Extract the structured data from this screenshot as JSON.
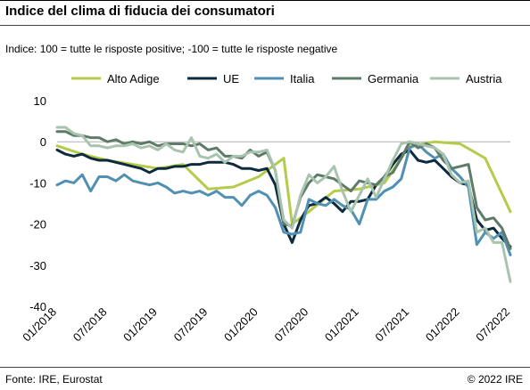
{
  "header": {
    "title": "Indice del clima di fiducia dei consumatori",
    "subtitle": "Indice: 100 = tutte le risposte positive; -100 =  tutte le risposte negative"
  },
  "footer": {
    "source": "Fonte: IRE, Eurostat",
    "copyright": "© 2022 IRE"
  },
  "chart_data": {
    "type": "line",
    "xlim": [
      "2018-01",
      "2022-07"
    ],
    "ylim": [
      -40,
      10
    ],
    "yticks": [
      10,
      0,
      -10,
      -20,
      -30,
      -40
    ],
    "xticks": [
      "01/2018",
      "07/2018",
      "01/2019",
      "07/2019",
      "01/2020",
      "07/2020",
      "01/2021",
      "07/2021",
      "01/2022",
      "07/2022"
    ],
    "legend_position": "top",
    "grid": false,
    "series": [
      {
        "name": "Alto Adige",
        "color": "#b5cc4a",
        "points": [
          [
            "2018-01",
            -1
          ],
          [
            "2018-04",
            -3
          ],
          [
            "2018-07",
            -4.5
          ],
          [
            "2018-10",
            -5.5
          ],
          [
            "2019-01",
            -6.5
          ],
          [
            "2019-04",
            -5.5
          ],
          [
            "2019-07",
            -11.5
          ],
          [
            "2019-10",
            -11
          ],
          [
            "2020-01",
            -8.5
          ],
          [
            "2020-04",
            -4
          ],
          [
            "2020-05",
            -20
          ],
          [
            "2020-07",
            -17
          ],
          [
            "2020-10",
            -12
          ],
          [
            "2021-01",
            -11.5
          ],
          [
            "2021-04",
            -10
          ],
          [
            "2021-07",
            -1
          ],
          [
            "2021-10",
            0
          ],
          [
            "2022-01",
            -0.5
          ],
          [
            "2022-04",
            -4
          ],
          [
            "2022-07",
            -17
          ]
        ]
      },
      {
        "name": "UE",
        "color": "#0d2a3f",
        "points": [
          [
            "2018-01",
            -2
          ],
          [
            "2018-02",
            -3
          ],
          [
            "2018-03",
            -3.5
          ],
          [
            "2018-04",
            -3
          ],
          [
            "2018-05",
            -4
          ],
          [
            "2018-06",
            -4.5
          ],
          [
            "2018-07",
            -4.5
          ],
          [
            "2018-08",
            -5
          ],
          [
            "2018-09",
            -5.5
          ],
          [
            "2018-10",
            -6
          ],
          [
            "2018-11",
            -6.5
          ],
          [
            "2018-12",
            -7.5
          ],
          [
            "2019-01",
            -6.5
          ],
          [
            "2019-02",
            -6.5
          ],
          [
            "2019-03",
            -6
          ],
          [
            "2019-04",
            -6
          ],
          [
            "2019-05",
            -5.5
          ],
          [
            "2019-06",
            -5.5
          ],
          [
            "2019-07",
            -5
          ],
          [
            "2019-08",
            -5
          ],
          [
            "2019-09",
            -5
          ],
          [
            "2019-10",
            -5.5
          ],
          [
            "2019-11",
            -6.5
          ],
          [
            "2019-12",
            -6.5
          ],
          [
            "2020-01",
            -7
          ],
          [
            "2020-02",
            -6.5
          ],
          [
            "2020-03",
            -10.5
          ],
          [
            "2020-04",
            -20
          ],
          [
            "2020-05",
            -24.5
          ],
          [
            "2020-06",
            -19
          ],
          [
            "2020-07",
            -15.5
          ],
          [
            "2020-08",
            -15
          ],
          [
            "2020-09",
            -13.5
          ],
          [
            "2020-10",
            -15
          ],
          [
            "2020-11",
            -17
          ],
          [
            "2020-12",
            -14.5
          ],
          [
            "2021-01",
            -14.5
          ],
          [
            "2021-02",
            -14
          ],
          [
            "2021-03",
            -10.5
          ],
          [
            "2021-04",
            -8.5
          ],
          [
            "2021-05",
            -5.5
          ],
          [
            "2021-06",
            -3
          ],
          [
            "2021-07",
            -2
          ],
          [
            "2021-08",
            -4.5
          ],
          [
            "2021-09",
            -5
          ],
          [
            "2021-10",
            -4.5
          ],
          [
            "2021-11",
            -6.5
          ],
          [
            "2021-12",
            -8.5
          ],
          [
            "2022-01",
            -10
          ],
          [
            "2022-02",
            -10.5
          ],
          [
            "2022-03",
            -19
          ],
          [
            "2022-04",
            -21.5
          ],
          [
            "2022-05",
            -21
          ],
          [
            "2022-06",
            -23.5
          ],
          [
            "2022-07",
            -25.5
          ]
        ]
      },
      {
        "name": "Italia",
        "color": "#4f90b3",
        "points": [
          [
            "2018-01",
            -10.5
          ],
          [
            "2018-02",
            -9.5
          ],
          [
            "2018-03",
            -10
          ],
          [
            "2018-04",
            -8
          ],
          [
            "2018-05",
            -12
          ],
          [
            "2018-06",
            -8.5
          ],
          [
            "2018-07",
            -8.5
          ],
          [
            "2018-08",
            -9.5
          ],
          [
            "2018-09",
            -8
          ],
          [
            "2018-10",
            -9.5
          ],
          [
            "2018-11",
            -10
          ],
          [
            "2018-12",
            -10.5
          ],
          [
            "2019-01",
            -10
          ],
          [
            "2019-02",
            -11
          ],
          [
            "2019-03",
            -12.5
          ],
          [
            "2019-04",
            -12
          ],
          [
            "2019-05",
            -12.5
          ],
          [
            "2019-06",
            -12
          ],
          [
            "2019-07",
            -13
          ],
          [
            "2019-08",
            -12
          ],
          [
            "2019-09",
            -13.5
          ],
          [
            "2019-10",
            -13.5
          ],
          [
            "2019-11",
            -15.5
          ],
          [
            "2019-12",
            -13
          ],
          [
            "2020-01",
            -12
          ],
          [
            "2020-02",
            -13
          ],
          [
            "2020-03",
            -16
          ],
          [
            "2020-04",
            -22
          ],
          [
            "2020-05",
            -22.5
          ],
          [
            "2020-06",
            -22
          ],
          [
            "2020-07",
            -14
          ],
          [
            "2020-08",
            -15
          ],
          [
            "2020-09",
            -15.5
          ],
          [
            "2020-10",
            -14
          ],
          [
            "2020-11",
            -15.5
          ],
          [
            "2020-12",
            -16.5
          ],
          [
            "2021-01",
            -20
          ],
          [
            "2021-02",
            -14
          ],
          [
            "2021-03",
            -14
          ],
          [
            "2021-04",
            -12
          ],
          [
            "2021-05",
            -11
          ],
          [
            "2021-06",
            -9
          ],
          [
            "2021-07",
            -1.5
          ],
          [
            "2021-08",
            -0.5
          ],
          [
            "2021-09",
            -2.5
          ],
          [
            "2021-10",
            -4
          ],
          [
            "2021-11",
            -3
          ],
          [
            "2021-12",
            -6.5
          ],
          [
            "2022-01",
            -8.5
          ],
          [
            "2022-02",
            -11
          ],
          [
            "2022-03",
            -25
          ],
          [
            "2022-04",
            -22
          ],
          [
            "2022-05",
            -23.5
          ],
          [
            "2022-06",
            -22
          ],
          [
            "2022-07",
            -27.5
          ]
        ]
      },
      {
        "name": "Germania",
        "color": "#5e7b69",
        "points": [
          [
            "2018-01",
            2.5
          ],
          [
            "2018-02",
            2.5
          ],
          [
            "2018-03",
            1.5
          ],
          [
            "2018-04",
            1.5
          ],
          [
            "2018-05",
            1
          ],
          [
            "2018-06",
            1
          ],
          [
            "2018-07",
            0
          ],
          [
            "2018-08",
            0.5
          ],
          [
            "2018-09",
            -0.5
          ],
          [
            "2018-10",
            0
          ],
          [
            "2018-11",
            -0.5
          ],
          [
            "2018-12",
            0
          ],
          [
            "2019-01",
            -1
          ],
          [
            "2019-02",
            -0.5
          ],
          [
            "2019-03",
            -0.5
          ],
          [
            "2019-04",
            -0.5
          ],
          [
            "2019-05",
            -1
          ],
          [
            "2019-06",
            -0.5
          ],
          [
            "2019-07",
            -2
          ],
          [
            "2019-08",
            -1.5
          ],
          [
            "2019-09",
            -3.5
          ],
          [
            "2019-10",
            -3.5
          ],
          [
            "2019-11",
            -4
          ],
          [
            "2019-12",
            -2
          ],
          [
            "2020-01",
            -3.5
          ],
          [
            "2020-02",
            -2.5
          ],
          [
            "2020-03",
            -7
          ],
          [
            "2020-04",
            -20
          ],
          [
            "2020-05",
            -20.5
          ],
          [
            "2020-06",
            -13.5
          ],
          [
            "2020-07",
            -10
          ],
          [
            "2020-08",
            -8
          ],
          [
            "2020-09",
            -8.5
          ],
          [
            "2020-10",
            -9
          ],
          [
            "2020-11",
            -10.5
          ],
          [
            "2020-12",
            -12
          ],
          [
            "2021-01",
            -9.5
          ],
          [
            "2021-02",
            -10
          ],
          [
            "2021-03",
            -10.5
          ],
          [
            "2021-04",
            -8.5
          ],
          [
            "2021-05",
            -7.5
          ],
          [
            "2021-06",
            -4
          ],
          [
            "2021-07",
            0
          ],
          [
            "2021-08",
            -1.5
          ],
          [
            "2021-09",
            -0.5
          ],
          [
            "2021-10",
            -1.5
          ],
          [
            "2021-11",
            -4.5
          ],
          [
            "2021-12",
            -6.5
          ],
          [
            "2022-01",
            -6
          ],
          [
            "2022-02",
            -5.5
          ],
          [
            "2022-03",
            -16
          ],
          [
            "2022-04",
            -19
          ],
          [
            "2022-05",
            -18.5
          ],
          [
            "2022-06",
            -21
          ],
          [
            "2022-07",
            -26
          ]
        ]
      },
      {
        "name": "Austria",
        "color": "#a8c4ae",
        "points": [
          [
            "2018-01",
            3.5
          ],
          [
            "2018-02",
            3.5
          ],
          [
            "2018-03",
            2
          ],
          [
            "2018-04",
            1.5
          ],
          [
            "2018-05",
            -1
          ],
          [
            "2018-06",
            -1
          ],
          [
            "2018-07",
            -1.5
          ],
          [
            "2018-08",
            -1
          ],
          [
            "2018-09",
            -1
          ],
          [
            "2018-10",
            -0.5
          ],
          [
            "2018-11",
            -1.5
          ],
          [
            "2018-12",
            -1
          ],
          [
            "2019-01",
            -2
          ],
          [
            "2019-02",
            -0.5
          ],
          [
            "2019-03",
            -2
          ],
          [
            "2019-04",
            -2.5
          ],
          [
            "2019-05",
            1
          ],
          [
            "2019-06",
            -3.5
          ],
          [
            "2019-07",
            -4
          ],
          [
            "2019-08",
            -3
          ],
          [
            "2019-09",
            -5
          ],
          [
            "2019-10",
            -3.5
          ],
          [
            "2019-11",
            -3.5
          ],
          [
            "2019-12",
            -2.5
          ],
          [
            "2020-01",
            -2.5
          ],
          [
            "2020-02",
            -2
          ],
          [
            "2020-03",
            -7
          ],
          [
            "2020-04",
            -19
          ],
          [
            "2020-05",
            -21
          ],
          [
            "2020-06",
            -13
          ],
          [
            "2020-07",
            -8
          ],
          [
            "2020-08",
            -10
          ],
          [
            "2020-09",
            -8.5
          ],
          [
            "2020-10",
            -6
          ],
          [
            "2020-11",
            -12
          ],
          [
            "2020-12",
            -17
          ],
          [
            "2021-01",
            -13
          ],
          [
            "2021-02",
            -9
          ],
          [
            "2021-03",
            -13.5
          ],
          [
            "2021-04",
            -9
          ],
          [
            "2021-05",
            -4.5
          ],
          [
            "2021-06",
            -0.5
          ],
          [
            "2021-07",
            0
          ],
          [
            "2021-08",
            -0.5
          ],
          [
            "2021-09",
            -1
          ],
          [
            "2021-10",
            -1.5
          ],
          [
            "2021-11",
            -3
          ],
          [
            "2021-12",
            -8
          ],
          [
            "2022-01",
            -10
          ],
          [
            "2022-02",
            -9.5
          ],
          [
            "2022-03",
            -22
          ],
          [
            "2022-04",
            -21
          ],
          [
            "2022-05",
            -24.5
          ],
          [
            "2022-06",
            -24.5
          ],
          [
            "2022-07",
            -34
          ]
        ]
      }
    ]
  }
}
